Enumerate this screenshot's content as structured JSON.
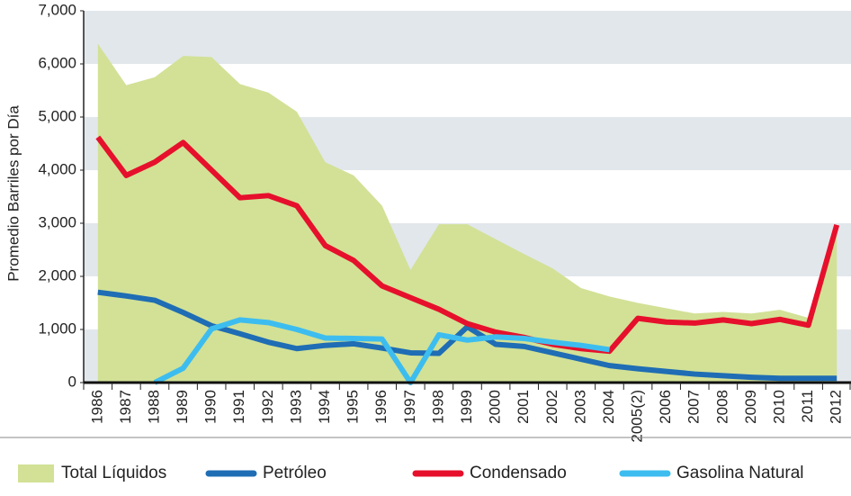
{
  "chart_data": {
    "type": "line",
    "y_label": "Promedio Barriles por Día",
    "categories": [
      "1986",
      "1987",
      "1988",
      "1989",
      "1990",
      "1991",
      "1992",
      "1993",
      "1994",
      "1995",
      "1996",
      "1997",
      "1998",
      "1999",
      "2000",
      "2001",
      "2002",
      "2003",
      "2004",
      "2005(2)",
      "2006",
      "2007",
      "2008",
      "2009",
      "2010",
      "2011",
      "2012"
    ],
    "series": [
      {
        "name": "Total Líquidos",
        "kind": "area",
        "color": "#d2e196",
        "values": [
          6380,
          5600,
          5750,
          6150,
          6130,
          5620,
          5460,
          5100,
          4150,
          3900,
          3330,
          2120,
          2980,
          2980,
          2700,
          2420,
          2150,
          1780,
          1620,
          1500,
          1400,
          1300,
          1330,
          1300,
          1370,
          1220,
          2950
        ]
      },
      {
        "name": "Petróleo",
        "kind": "line",
        "color": "#1f6db4",
        "values": [
          1700,
          1630,
          1550,
          1320,
          1070,
          920,
          760,
          640,
          700,
          730,
          650,
          560,
          550,
          1050,
          720,
          680,
          560,
          440,
          320,
          260,
          210,
          160,
          130,
          100,
          80,
          80,
          80
        ]
      },
      {
        "name": "Condensado",
        "kind": "line",
        "color": "#e6102c",
        "values": [
          4620,
          3900,
          4150,
          4520,
          4000,
          3480,
          3520,
          3330,
          2580,
          2300,
          1820,
          1600,
          1380,
          1110,
          950,
          850,
          720,
          640,
          590,
          1210,
          1140,
          1120,
          1180,
          1110,
          1190,
          1080,
          2970
        ]
      },
      {
        "name": "Gasolina Natural",
        "kind": "line",
        "color": "#3dbdef",
        "values": [
          null,
          null,
          0,
          270,
          1010,
          1180,
          1130,
          1000,
          840,
          830,
          820,
          0,
          900,
          800,
          860,
          830,
          760,
          700,
          620,
          null,
          null,
          null,
          null,
          null,
          null,
          null,
          null
        ]
      }
    ],
    "ylim": [
      0,
      7000
    ],
    "yticks": [
      0,
      {
        "value": 1000,
        "label": "1,000"
      },
      {
        "value": 2000,
        "label": "2,000"
      },
      {
        "value": 3000,
        "label": "3,000"
      },
      {
        "value": 4000,
        "label": "4,000"
      },
      {
        "value": 5000,
        "label": "5,000"
      },
      {
        "value": 6000,
        "label": "6,000"
      },
      {
        "value": 7000,
        "label": "7,000"
      }
    ],
    "grid": true,
    "grid_color": "#e2e7eb",
    "legend": "bottom"
  }
}
